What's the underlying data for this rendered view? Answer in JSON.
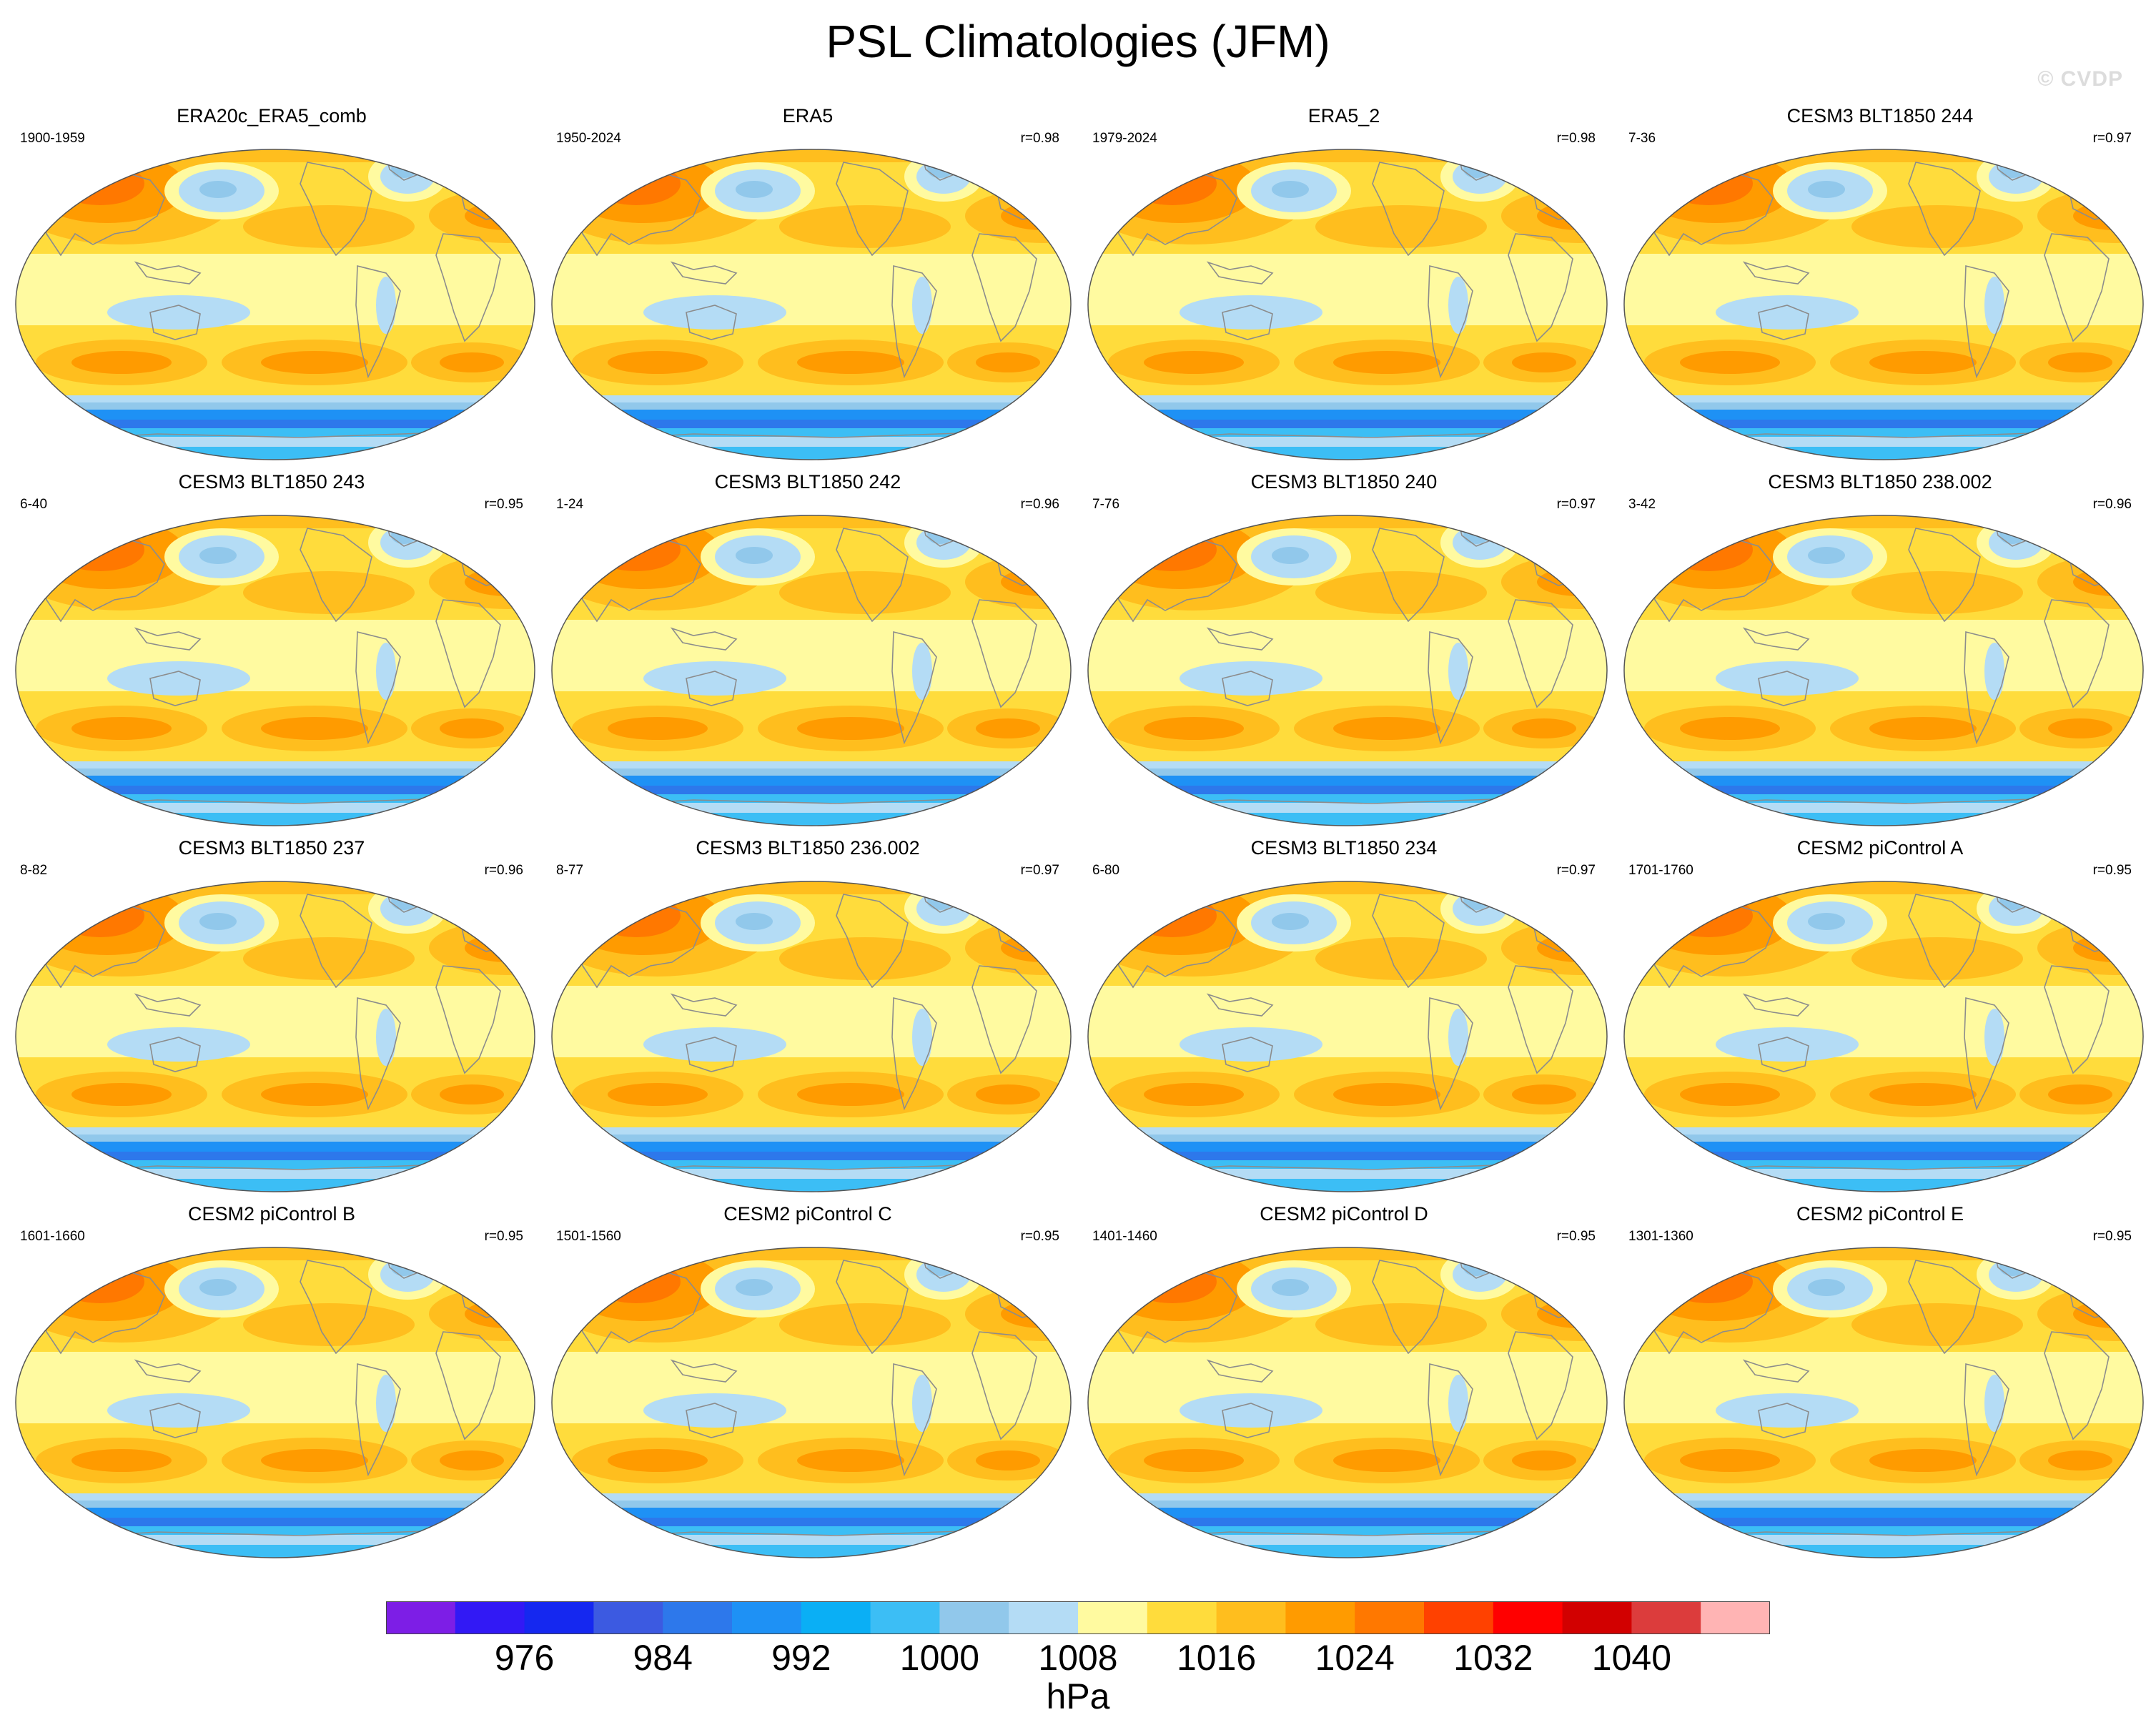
{
  "title": "PSL Climatologies (JFM)",
  "watermark": "© CVDP",
  "colors": {
    "levels": [
      "#7d1ee6",
      "#3219f5",
      "#1528f0",
      "#3c5ae1",
      "#2d78eb",
      "#1e91f5",
      "#0aaff5",
      "#3cbef5",
      "#91c8eb",
      "#b4dcf5",
      "#fffaa0",
      "#ffdc3c",
      "#ffbe1e",
      "#ff9b00",
      "#ff7800",
      "#ff4100",
      "#ff0000",
      "#d20000",
      "#dc3c3c",
      "#ffb4b4"
    ],
    "land_outline": "#8c8c8c",
    "background": "#ffffff"
  },
  "colorbar": {
    "tick_labels": [
      "976",
      "984",
      "992",
      "1000",
      "1008",
      "1016",
      "1024",
      "1032",
      "1040"
    ],
    "units": "hPa"
  },
  "panels": [
    {
      "title": "ERA20c_ERA5_comb",
      "years": "1900-1959",
      "r": ""
    },
    {
      "title": "ERA5",
      "years": "1950-2024",
      "r": "r=0.98"
    },
    {
      "title": "ERA5_2",
      "years": "1979-2024",
      "r": "r=0.98"
    },
    {
      "title": "CESM3 BLT1850 244",
      "years": "7-36",
      "r": "r=0.97"
    },
    {
      "title": "CESM3 BLT1850 243",
      "years": "6-40",
      "r": "r=0.95"
    },
    {
      "title": "CESM3 BLT1850 242",
      "years": "1-24",
      "r": "r=0.96"
    },
    {
      "title": "CESM3 BLT1850 240",
      "years": "7-76",
      "r": "r=0.97"
    },
    {
      "title": "CESM3 BLT1850 238.002",
      "years": "3-42",
      "r": "r=0.96"
    },
    {
      "title": "CESM3 BLT1850 237",
      "years": "8-82",
      "r": "r=0.96"
    },
    {
      "title": "CESM3 BLT1850 236.002",
      "years": "8-77",
      "r": "r=0.97"
    },
    {
      "title": "CESM3 BLT1850 234",
      "years": "6-80",
      "r": "r=0.97"
    },
    {
      "title": "CESM2 piControl A",
      "years": "1701-1760",
      "r": "r=0.95"
    },
    {
      "title": "CESM2 piControl B",
      "years": "1601-1660",
      "r": "r=0.95"
    },
    {
      "title": "CESM2 piControl C",
      "years": "1501-1560",
      "r": "r=0.95"
    },
    {
      "title": "CESM2 piControl D",
      "years": "1401-1460",
      "r": "r=0.95"
    },
    {
      "title": "CESM2 piControl E",
      "years": "1301-1360",
      "r": "r=0.95"
    }
  ]
}
